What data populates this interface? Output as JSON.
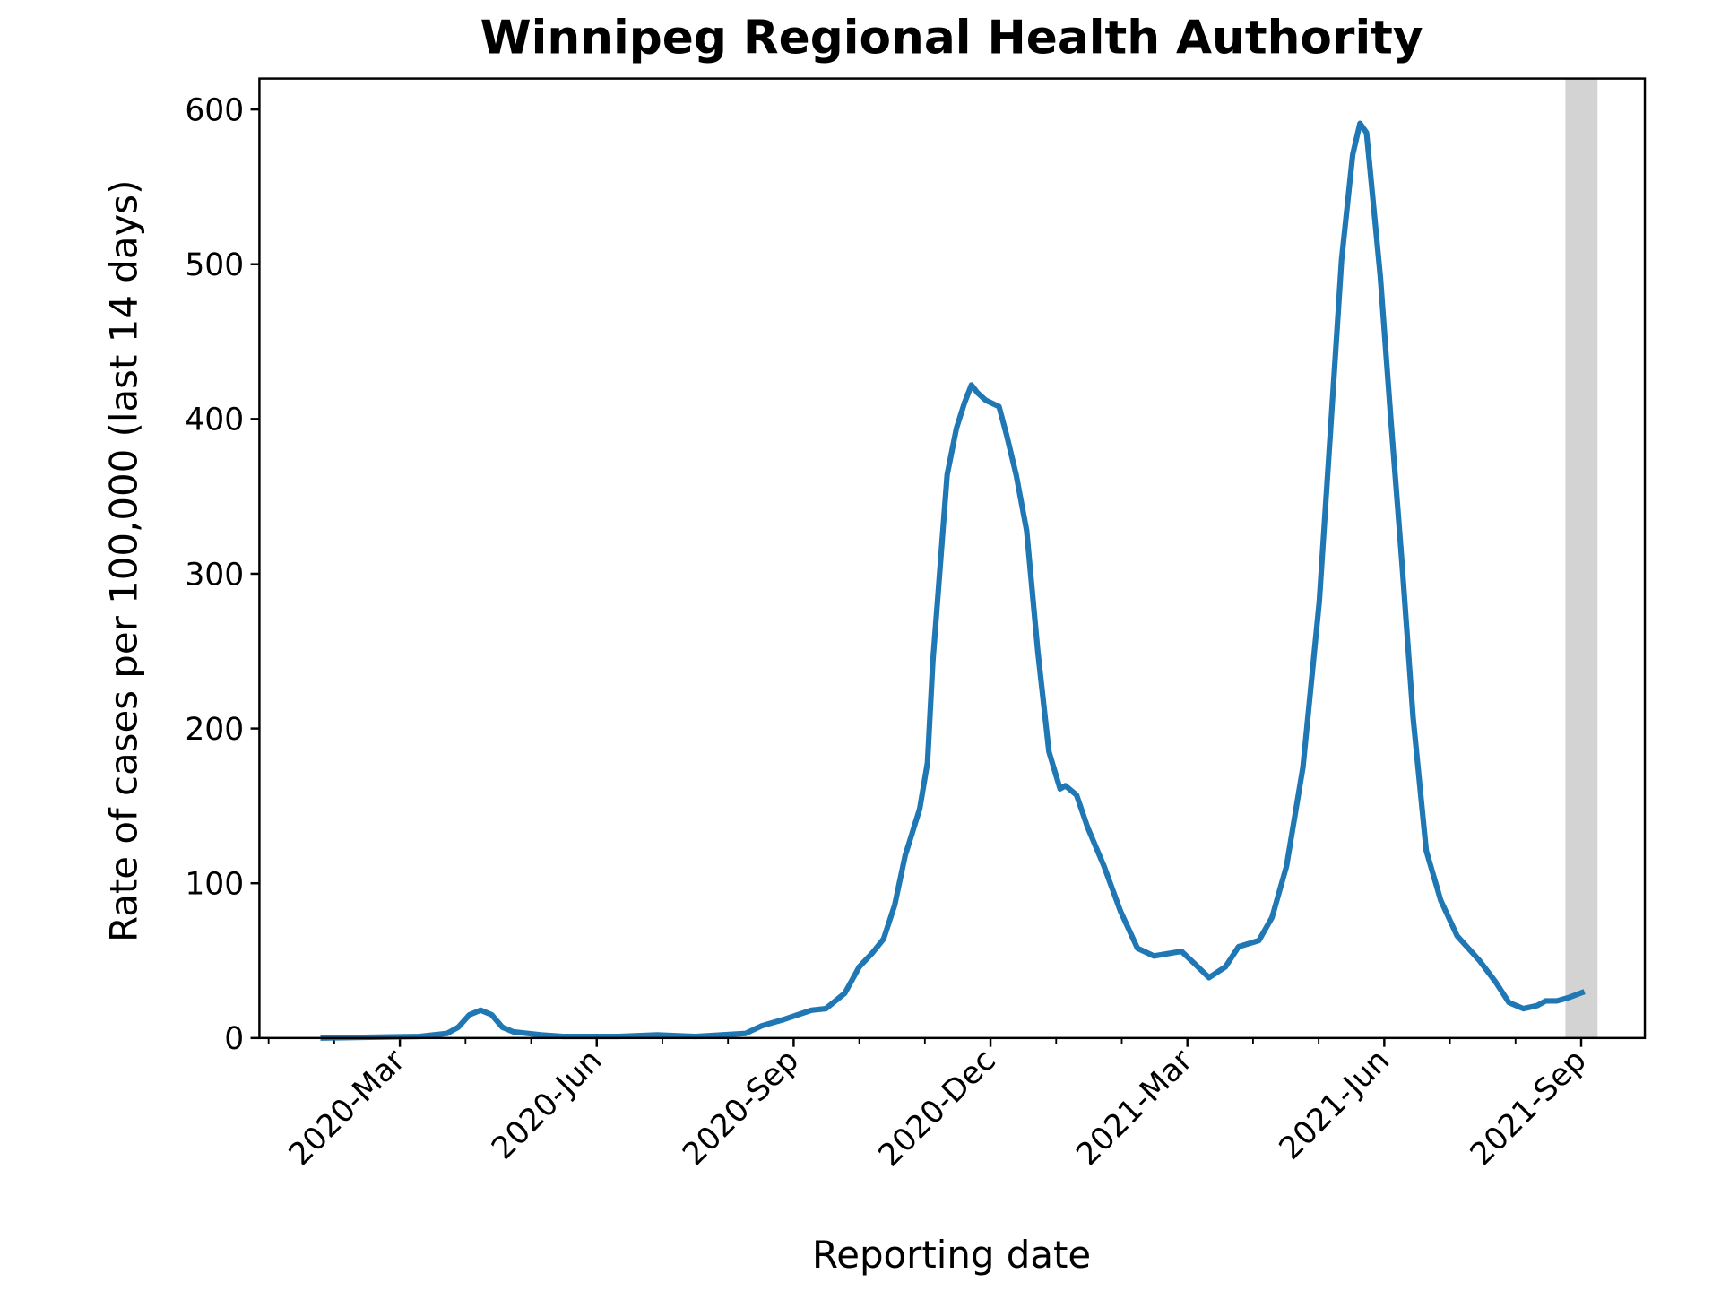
{
  "chart_data": {
    "type": "line",
    "title": "Winnipeg Regional Health Authority",
    "x_label": "Reporting date",
    "y_label": "Rate of cases per 100,000 (last 14 days)",
    "x": [
      1.79,
      3.3,
      3.72,
      3.89,
      4.06,
      4.23,
      4.4,
      4.56,
      4.73,
      5.15,
      5.49,
      6.33,
      6.92,
      7.51,
      8.27,
      8.52,
      8.85,
      9.27,
      9.49,
      9.78,
      10.0,
      10.2,
      10.37,
      10.54,
      10.7,
      10.92,
      11.04,
      11.12,
      11.21,
      11.34,
      11.48,
      11.6,
      11.71,
      11.8,
      11.93,
      12.13,
      12.25,
      12.39,
      12.55,
      12.72,
      12.89,
      13.06,
      13.14,
      13.31,
      13.48,
      13.73,
      13.98,
      14.24,
      14.49,
      14.91,
      15.11,
      15.33,
      15.58,
      15.78,
      16.09,
      16.29,
      16.51,
      16.76,
      17.01,
      17.18,
      17.35,
      17.52,
      17.63,
      17.73,
      17.94,
      18.1,
      18.27,
      18.44,
      18.64,
      18.86,
      19.11,
      19.45,
      19.7,
      19.9,
      20.12,
      20.33,
      20.46,
      20.63,
      20.8,
      21.05
    ],
    "series": [
      {
        "name": "Winnipeg",
        "color": "#1f77b4",
        "values": [
          0,
          1,
          3,
          7,
          15,
          18,
          15,
          7,
          4,
          2,
          1,
          1,
          2,
          1,
          3,
          8,
          12,
          18,
          19,
          29,
          46,
          55,
          64,
          86,
          118,
          148,
          178,
          243,
          292,
          364,
          394,
          410,
          422,
          417,
          412,
          408,
          389,
          364,
          328,
          250,
          185,
          161,
          163,
          157,
          136,
          111,
          82,
          58,
          53,
          56,
          48,
          39,
          46,
          59,
          63,
          78,
          111,
          175,
          282,
          392,
          503,
          571,
          591,
          585,
          492,
          400,
          307,
          207,
          121,
          89,
          66,
          50,
          36,
          23,
          19,
          21,
          24,
          24,
          26,
          30
        ]
      }
    ],
    "xlim": [
      0.86,
      21.97
    ],
    "xticks": [
      {
        "value": 3,
        "label": "2020-Mar"
      },
      {
        "value": 6,
        "label": "2020-Jun"
      },
      {
        "value": 9,
        "label": "2020-Sep"
      },
      {
        "value": 12,
        "label": "2020-Dec"
      },
      {
        "value": 15,
        "label": "2021-Mar"
      },
      {
        "value": 18,
        "label": "2021-Jun"
      },
      {
        "value": 21,
        "label": "2021-Sep"
      }
    ],
    "xminor": [
      1,
      2,
      4,
      5,
      7,
      8,
      10,
      11,
      13,
      14,
      16,
      17,
      19,
      20
    ],
    "ylim": [
      0,
      620
    ],
    "yticks": [
      0,
      100,
      200,
      300,
      400,
      500,
      600
    ],
    "shade": [
      20.76,
      21.25
    ],
    "shade_color": "#d3d3d3"
  }
}
